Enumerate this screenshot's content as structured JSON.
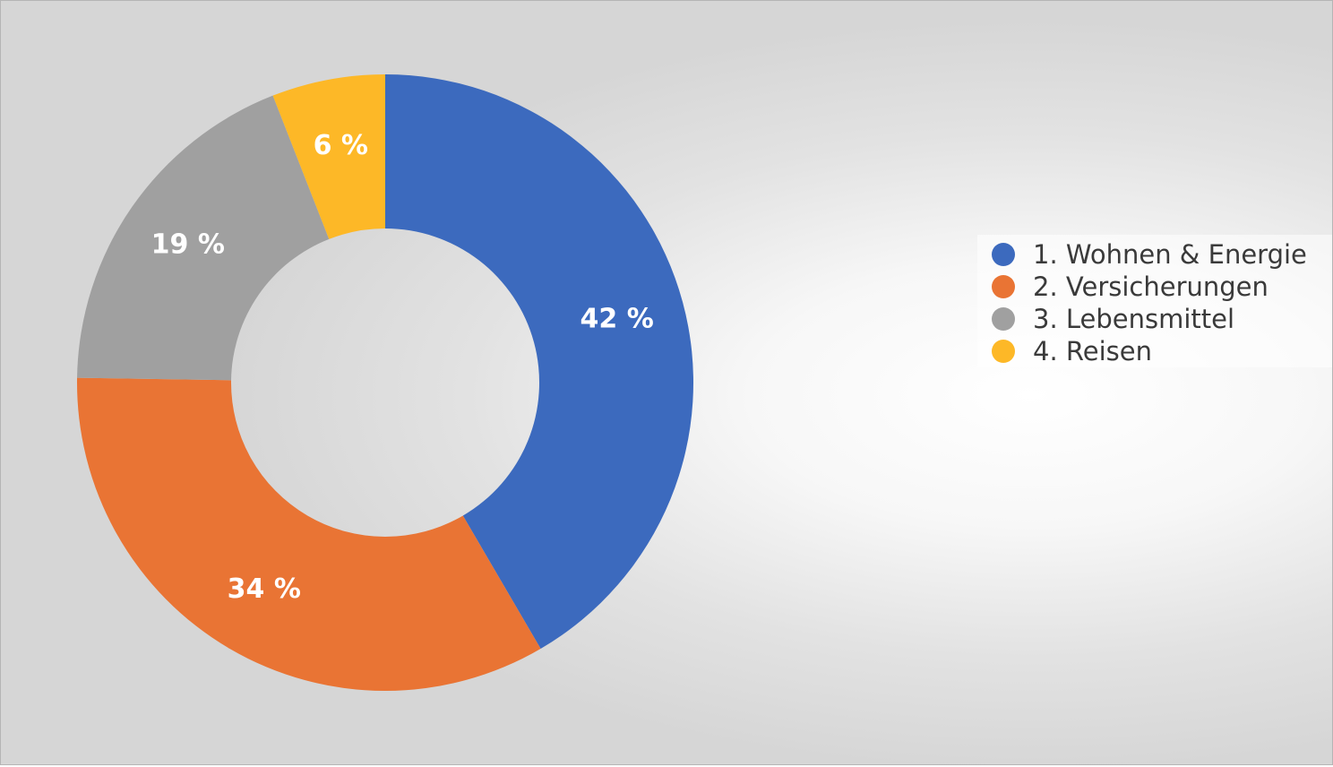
{
  "chart_data": {
    "type": "pie",
    "variant": "donut",
    "categories": [
      "1. Wohnen & Energie",
      "2. Versicherungen",
      "3. Lebensmittel",
      "4. Reisen"
    ],
    "values": [
      42,
      34,
      19,
      6
    ],
    "data_labels": [
      "42 %",
      "34 %",
      "19 %",
      "6 %"
    ],
    "colors": [
      "#3C6ABE",
      "#E97434",
      "#A0A0A0",
      "#FDB827"
    ],
    "legend_position": "right",
    "title": ""
  }
}
